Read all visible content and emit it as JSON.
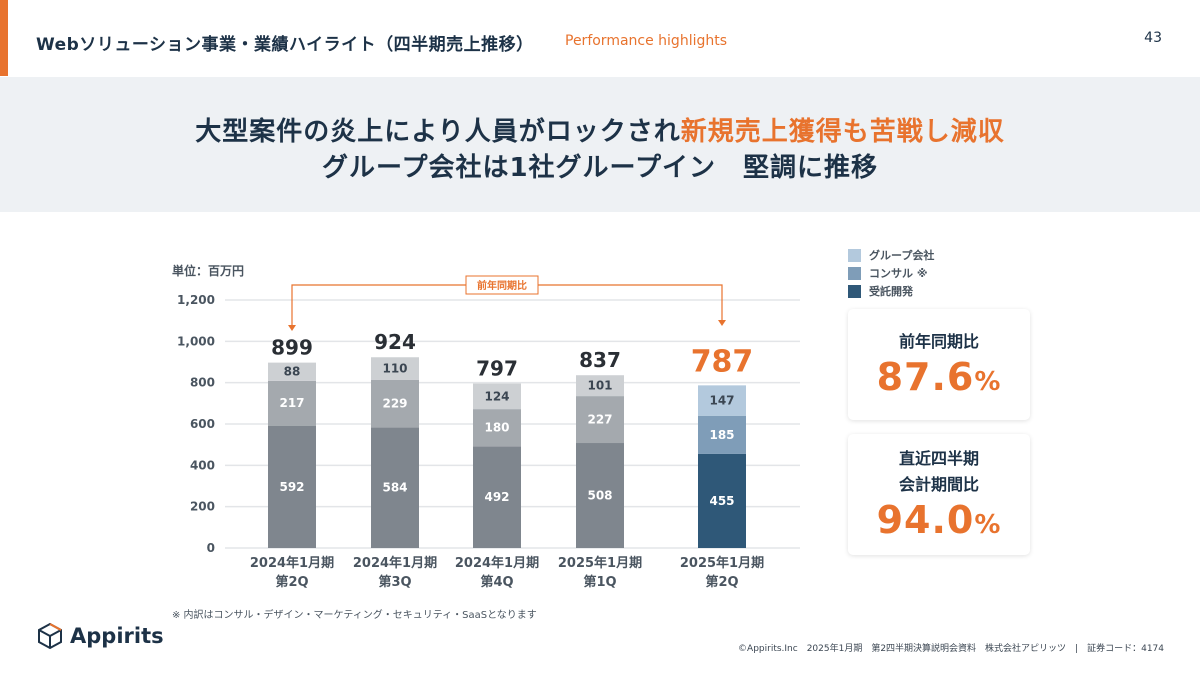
{
  "header": {
    "title": "Webソリューション事業・業績ハイライト（四半期売上推移）",
    "subtitle": "Performance highlights",
    "page_number": "43"
  },
  "banner": {
    "line1_normal": "大型案件の炎上により人員がロックされ",
    "line1_highlight": "新規売上獲得も苦戦し減収",
    "line2": "グループ会社は1社グループイン　堅調に推移"
  },
  "legend": [
    {
      "label": "グループ会社",
      "color": "#b3c9dd"
    },
    {
      "label": "コンサル ※",
      "color": "#7f9db8"
    },
    {
      "label": "受託開発",
      "color": "#2f5878"
    }
  ],
  "cards": [
    {
      "label_lines": [
        "前年同期比"
      ],
      "value": "87.6",
      "unit": "%"
    },
    {
      "label_lines": [
        "直近四半期",
        "会計期間比"
      ],
      "value": "94.0",
      "unit": "%"
    }
  ],
  "chart_data": {
    "type": "stacked-bar",
    "unit_label": "単位：百万円",
    "ylim": [
      0,
      1200
    ],
    "yticks": [
      "0",
      "200",
      "400",
      "600",
      "800",
      "1,000",
      "1,200"
    ],
    "ytick_values": [
      0,
      200,
      400,
      600,
      800,
      1000,
      1200
    ],
    "grid": true,
    "categories": [
      [
        "2024年1月期",
        "第2Q"
      ],
      [
        "2024年1月期",
        "第3Q"
      ],
      [
        "2024年1月期",
        "第4Q"
      ],
      [
        "2025年1月期",
        "第1Q"
      ],
      [
        "2025年1月期",
        "第2Q"
      ]
    ],
    "series": [
      {
        "name": "受託開発",
        "values": [
          592,
          584,
          492,
          508,
          455
        ]
      },
      {
        "name": "コンサル ※",
        "values": [
          217,
          229,
          180,
          227,
          185
        ]
      },
      {
        "name": "グループ会社",
        "values": [
          88,
          110,
          124,
          101,
          147
        ]
      }
    ],
    "totals": [
      899,
      924,
      797,
      837,
      787
    ],
    "highlight_index": 4,
    "past_colors": [
      "#7f868e",
      "#a4a9ae",
      "#cdd0d3"
    ],
    "highlight_colors": [
      "#2f5878",
      "#7f9db8",
      "#b3c9dd"
    ],
    "accent_color": "#e8732e",
    "comparison_annotation": {
      "label": "前年同期比",
      "from_index": 0,
      "to_index": 4
    }
  },
  "note": "※ 内訳はコンサル・デザイン・マーケティング・セキュリティ・SaaSとなります",
  "logo": {
    "text": "Appirits"
  },
  "footer": "©Appirits.Inc　2025年1月期　第2四半期決算説明会資料　株式会社アピリッツ　|　証券コード：4174"
}
